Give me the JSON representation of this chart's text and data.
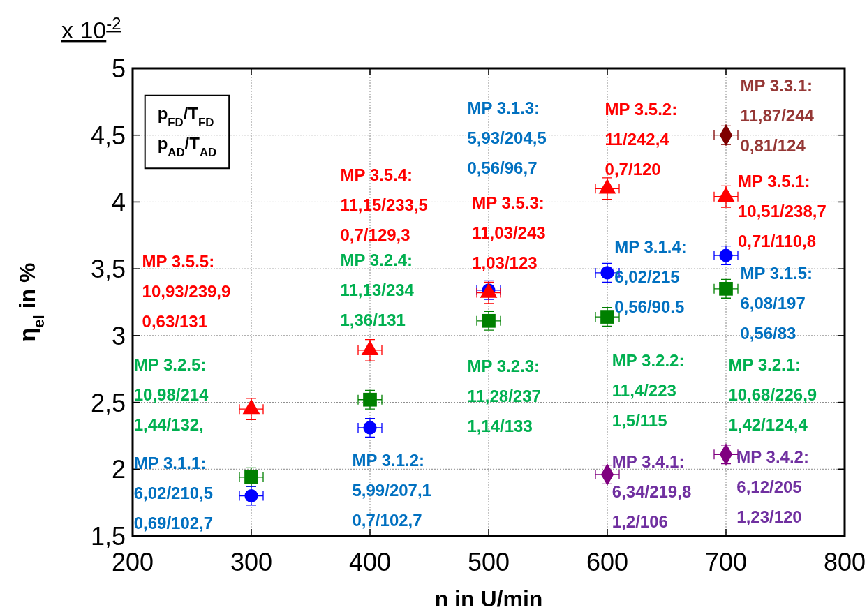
{
  "chart_data": {
    "type": "scatter",
    "xlabel": "n in U/min",
    "ylabel": "η$_{el}$ in %",
    "xlim": [
      200,
      800
    ],
    "xticks": [
      200,
      300,
      400,
      500,
      600,
      700,
      800
    ],
    "ylim": [
      1.5,
      5
    ],
    "yticks": [
      {
        "value": 1.5,
        "label": "1,5"
      },
      2,
      {
        "value": 2.5,
        "label": "2,5"
      },
      3,
      {
        "value": 3.5,
        "label": "3,5"
      },
      4,
      {
        "value": 4.5,
        "label": "4,5"
      },
      5
    ],
    "grid": true,
    "series": [
      {
        "color": "#ff0000",
        "marker": "triangle",
        "x": [
          300,
          400,
          500,
          600,
          700
        ],
        "values": [
          2.45,
          2.89,
          3.32,
          4.1,
          4.04
        ],
        "errors": [
          0.08,
          0.08,
          0.08,
          0.08,
          0.08
        ],
        "xerrors": [
          10,
          10,
          10,
          10,
          10
        ]
      },
      {
        "color": "#0000ff",
        "marker": "circle",
        "x": [
          300,
          400,
          500,
          600,
          700
        ],
        "values": [
          1.8,
          2.31,
          3.34,
          3.47,
          3.6
        ],
        "errors": [
          0.07,
          0.07,
          0.07,
          0.07,
          0.07
        ],
        "xerrors": [
          10,
          10,
          10,
          10,
          10
        ]
      },
      {
        "color": "#008000",
        "marker": "square",
        "x": [
          300,
          400,
          500,
          600,
          700
        ],
        "values": [
          1.94,
          2.52,
          3.11,
          3.14,
          3.35
        ],
        "errors": [
          0.07,
          0.07,
          0.07,
          0.07,
          0.07
        ],
        "xerrors": [
          10,
          10,
          10,
          10,
          10
        ]
      },
      {
        "color": "#800080",
        "marker": "diamond",
        "x": [
          600,
          700
        ],
        "values": [
          1.96,
          2.11
        ],
        "errors": [
          0.07,
          0.07
        ],
        "xerrors": [
          10,
          10
        ]
      },
      {
        "color": "#7f0000",
        "marker": "diamond",
        "x": [
          700
        ],
        "values": [
          4.5
        ],
        "errors": [
          0.07
        ],
        "xerrors": [
          10
        ]
      }
    ],
    "annotations": [
      "x 10$^{-2}$",
      "p$_{FD}$/T$_{FD}$\np$_{AD}$/T$_{AD}$",
      "MP 3.5.5:\n10,93/239,9\n0,63/131",
      "MP 3.2.5:\n10,98/214\n1,44/132,",
      "MP 3.1.1:\n6,02/210,5\n0,69/102,7",
      "MP 3.5.4:\n11,15/233,5\n0,7/129,3",
      "MP 3.2.4:\n11,13/234\n1,36/131",
      "MP 3.1.2:\n5,99/207,1\n0,7/102,7",
      "MP 3.1.3:\n5,93/204,5\n0,56/96,7",
      "MP 3.5.3:\n11,03/243\n1,03/123",
      "MP 3.2.3:\n11,28/237\n1,14/133",
      "MP 3.5.2:\n11/242,4\n0,7/120",
      "MP 3.1.4:\n6,02/215\n0,56/90.5",
      "MP 3.2.2:\n11,4/223\n1,5/115",
      "MP 3.4.1:\n6,34/219,8\n1,2/106",
      "MP 3.3.1:\n11,87/244\n0,81/124",
      "MP 3.5.1:\n10,51/238,7\n0,71/110,8",
      "MP 3.1.5:\n6,08/197\n0,56/83",
      "MP 3.2.1:\n10,68/226,9\n1,42/124,4",
      "MP 3.4.2:\n6,12/205\n1,23/120"
    ]
  }
}
